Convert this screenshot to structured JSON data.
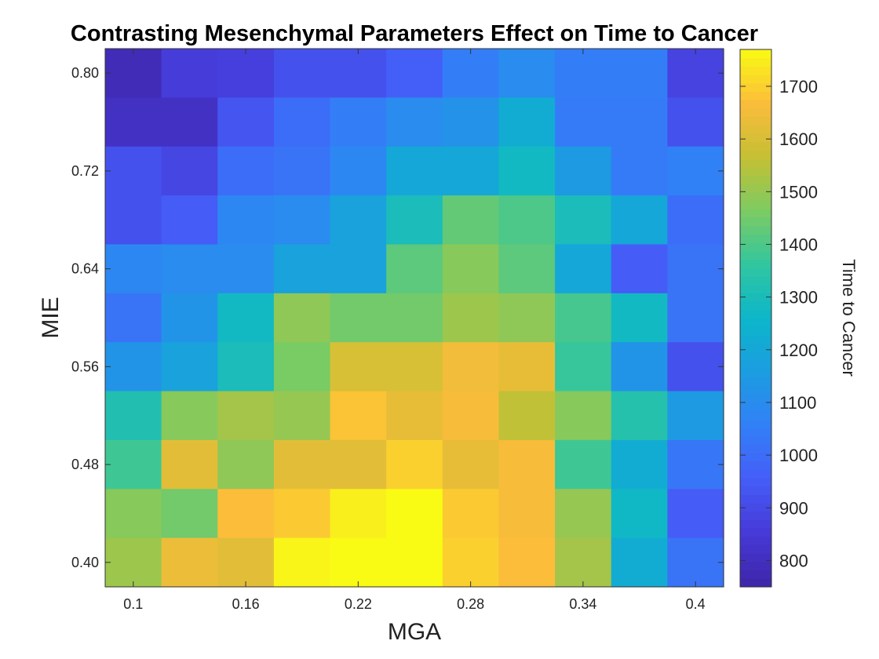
{
  "chart_data": {
    "type": "heatmap",
    "title": "Contrasting Mesenchymal Parameters Effect on Time to Cancer",
    "xlabel": "MGA",
    "ylabel": "MIE",
    "colorbar_label": "Time to Cancer",
    "x": [
      0.1,
      0.13,
      0.16,
      0.19,
      0.22,
      0.25,
      0.28,
      0.31,
      0.34,
      0.37,
      0.4
    ],
    "y": [
      0.8,
      0.76,
      0.72,
      0.68,
      0.64,
      0.6,
      0.56,
      0.52,
      0.48,
      0.44,
      0.4
    ],
    "xticks": [
      "0.1",
      "0.16",
      "0.22",
      "0.28",
      "0.34",
      "0.4"
    ],
    "yticks": [
      "0.80",
      "0.72",
      "0.64",
      "0.56",
      "0.48",
      "0.40"
    ],
    "colorbar_ticks": [
      800,
      900,
      1000,
      1100,
      1200,
      1300,
      1400,
      1500,
      1600,
      1700
    ],
    "clim": [
      750,
      1770
    ],
    "colormap": "parula",
    "values": [
      [
        780,
        860,
        870,
        920,
        920,
        960,
        1050,
        1100,
        1050,
        1050,
        880
      ],
      [
        810,
        810,
        930,
        1000,
        1050,
        1100,
        1120,
        1220,
        1040,
        1040,
        920
      ],
      [
        920,
        890,
        1000,
        1020,
        1080,
        1200,
        1200,
        1280,
        1150,
        1040,
        1060
      ],
      [
        920,
        950,
        1080,
        1100,
        1180,
        1300,
        1430,
        1400,
        1300,
        1200,
        1000
      ],
      [
        1080,
        1100,
        1100,
        1180,
        1180,
        1420,
        1480,
        1420,
        1200,
        950,
        1020
      ],
      [
        1020,
        1130,
        1280,
        1490,
        1450,
        1450,
        1510,
        1490,
        1390,
        1280,
        1020
      ],
      [
        1130,
        1180,
        1300,
        1460,
        1600,
        1600,
        1650,
        1630,
        1370,
        1130,
        920
      ],
      [
        1320,
        1480,
        1520,
        1500,
        1680,
        1630,
        1660,
        1560,
        1480,
        1330,
        1150
      ],
      [
        1380,
        1620,
        1490,
        1620,
        1620,
        1700,
        1630,
        1660,
        1380,
        1220,
        1030
      ],
      [
        1480,
        1450,
        1670,
        1690,
        1750,
        1770,
        1690,
        1660,
        1500,
        1270,
        950
      ],
      [
        1510,
        1640,
        1620,
        1760,
        1770,
        1770,
        1700,
        1670,
        1520,
        1220,
        1020
      ]
    ]
  }
}
